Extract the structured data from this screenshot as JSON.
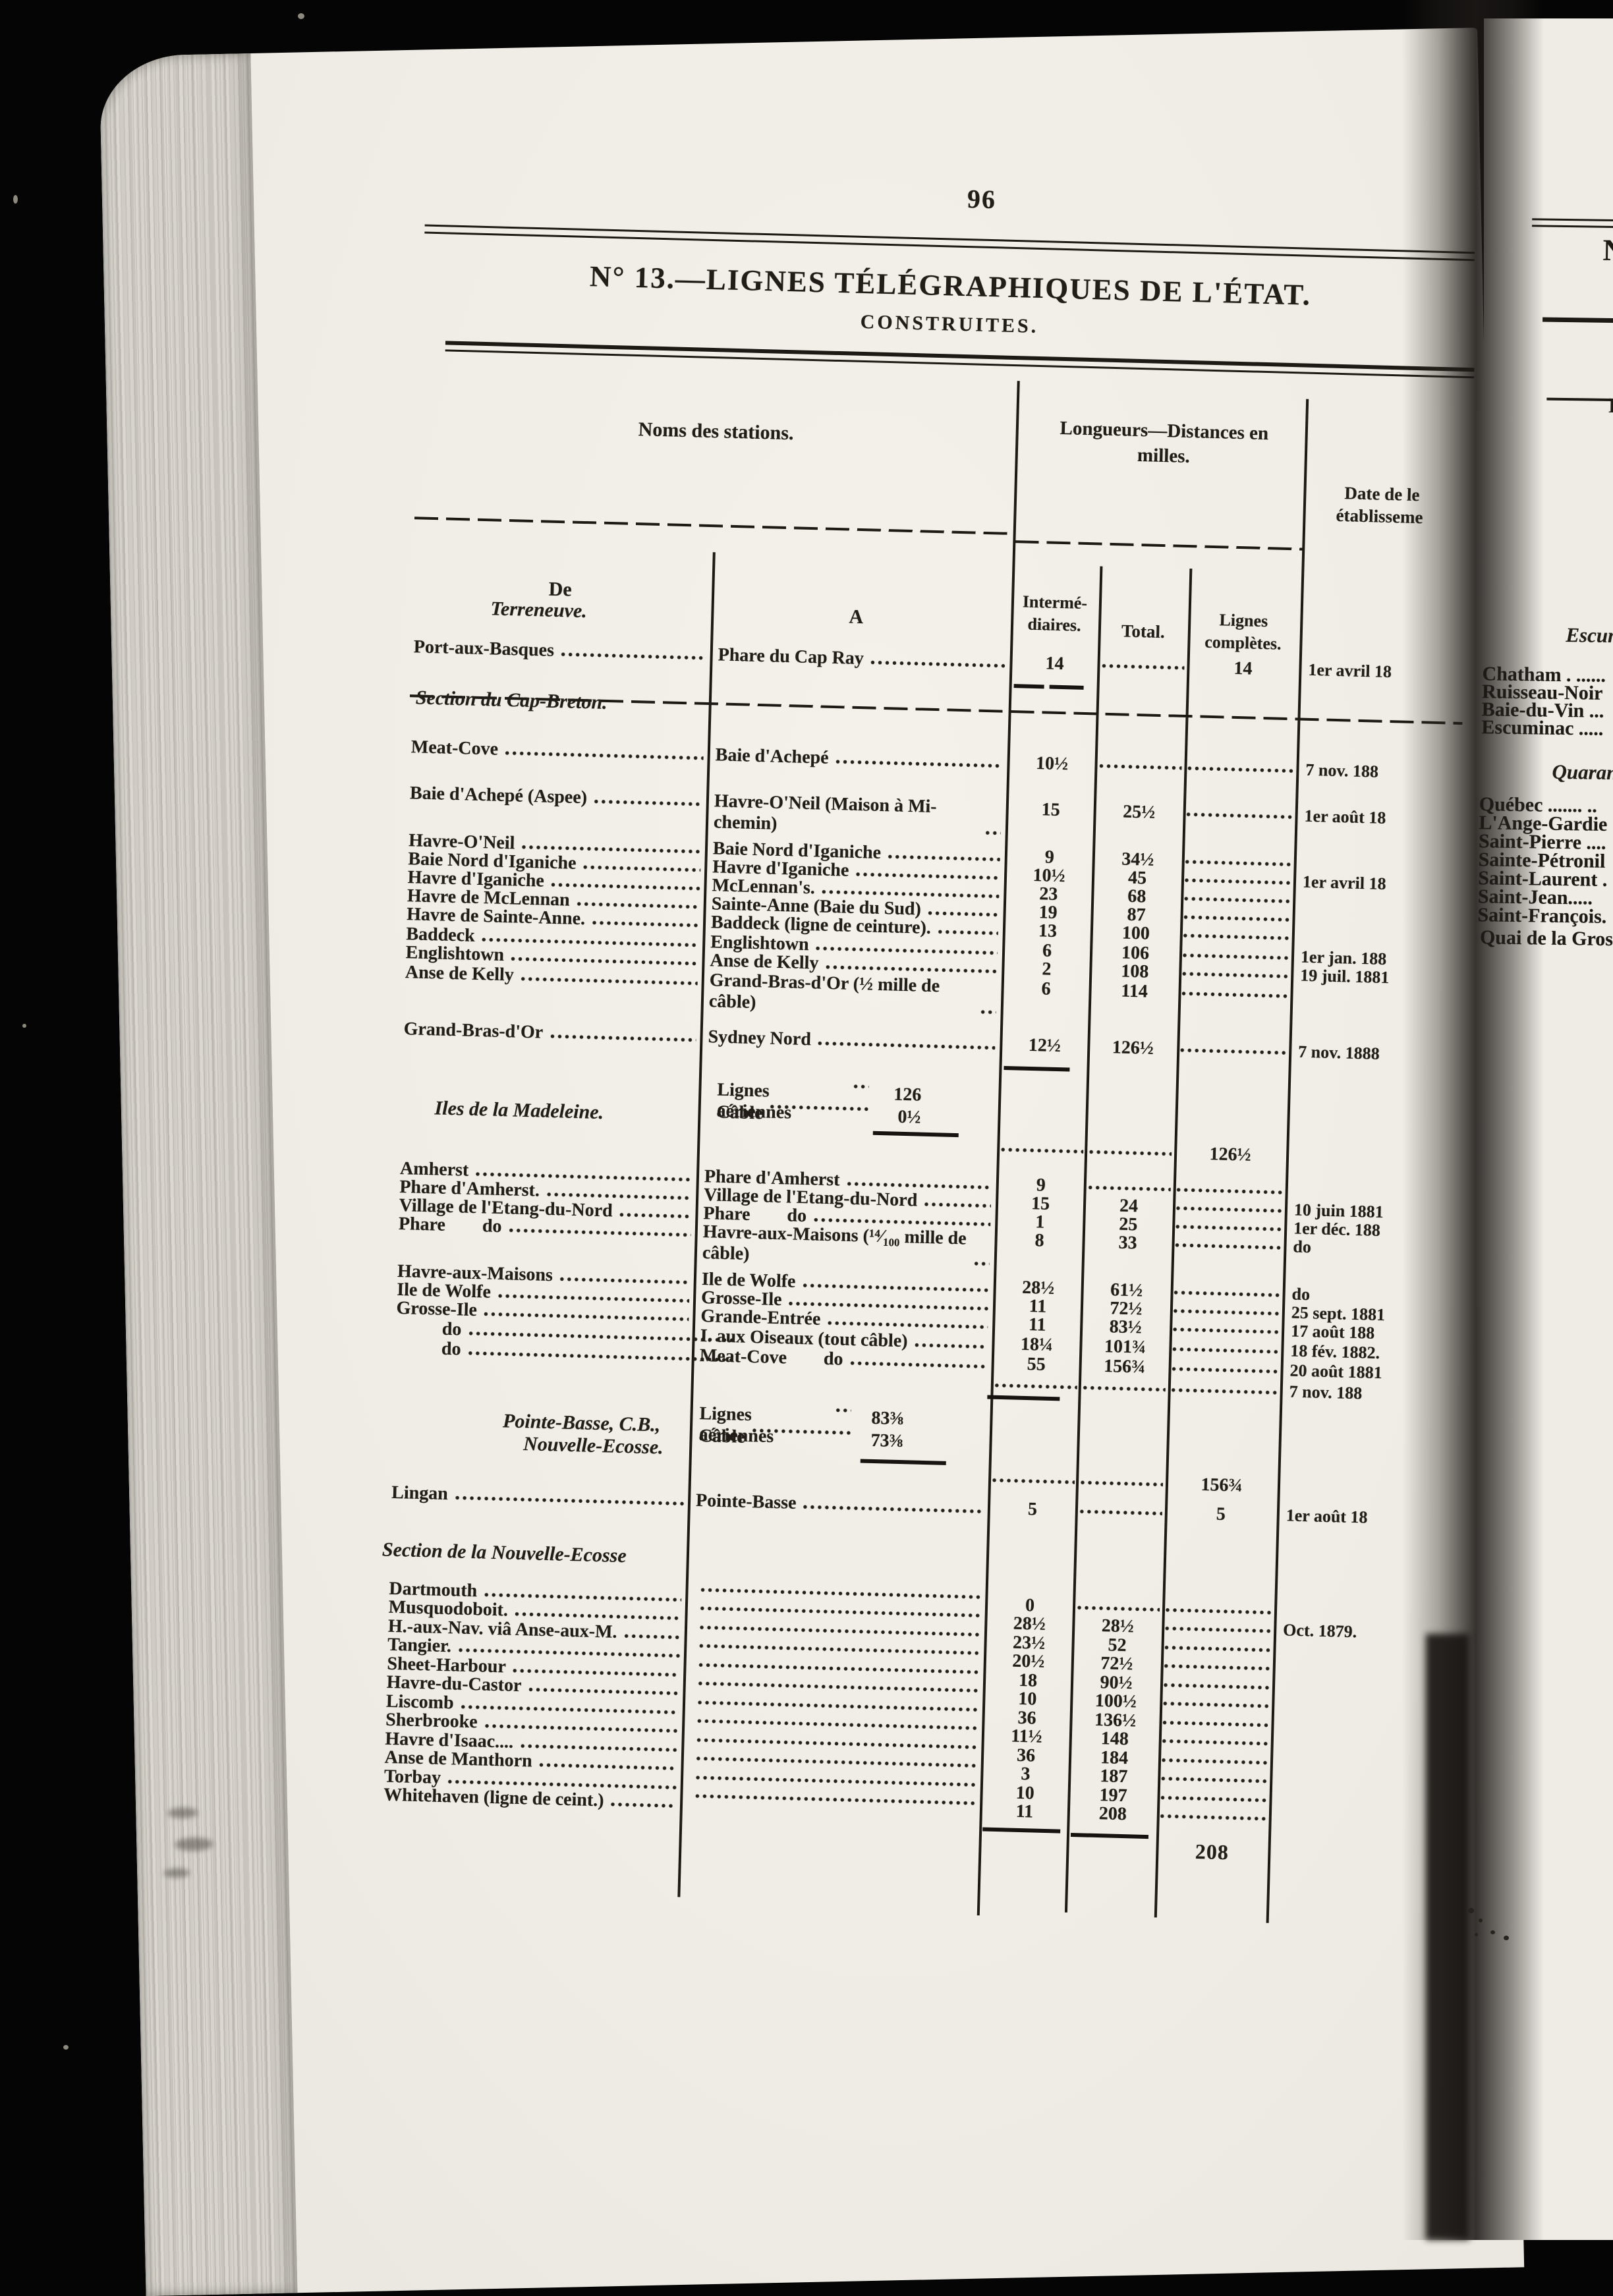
{
  "page": {
    "number": "96",
    "title": "N° 13.—LIGNES TÉLÉGRAPHIQUES DE L'ÉTAT.",
    "subtitle": "CONSTRUITES."
  },
  "table": {
    "headers": {
      "stations": "Noms des stations.",
      "longueurs_line1": "Longueurs—Distances en",
      "longueurs_line2": "milles.",
      "date_line1": "Date de le",
      "date_line2": "établisseme",
      "de": "De",
      "a": "A",
      "interm_line1": "Intermé-",
      "interm_line2": "diaires.",
      "total": "Total.",
      "lignes_line1": "Lignes",
      "lignes_line2": "complètes."
    },
    "sections": [
      {
        "heading": "Terreneuve.",
        "rows": [
          {
            "de": "Port-aux-Basques",
            "a": "Phare du Cap Ray",
            "interm": "14",
            "total": "",
            "lignes": "14",
            "date": "1er avril 18"
          }
        ]
      },
      {
        "heading": "Section du Cap-Breton.",
        "rows": [
          {
            "de": "Meat-Cove",
            "a": "Baie d'Achepé",
            "interm": "10½",
            "total": "",
            "lignes": "",
            "date": "7 nov. 188"
          },
          {
            "de": "Baie d'Achepé (Aspee)",
            "a": "Havre-O'Neil (Maison à Mi-chemin)",
            "interm": "15",
            "total": "25½",
            "lignes": "",
            "date": "1er août 18"
          },
          {
            "de": "Havre-O'Neil",
            "a": "Baie Nord d'Iganiche",
            "interm": "9",
            "total": "34½",
            "lignes": "",
            "date": ""
          },
          {
            "de": "Baie Nord d'Iganiche",
            "a": "Havre d'Iganiche",
            "interm": "10½",
            "total": "45",
            "lignes": "",
            "date": "1er avril 18"
          },
          {
            "de": "Havre d'Iganiche",
            "a": "McLennan's.",
            "interm": "23",
            "total": "68",
            "lignes": "",
            "date": ""
          },
          {
            "de": "Havre de McLennan",
            "a": "Sainte-Anne (Baie du Sud)",
            "interm": "19",
            "total": "87",
            "lignes": "",
            "date": ""
          },
          {
            "de": "Havre de Sainte-Anne.",
            "a": "Baddeck (ligne de ceinture).",
            "interm": "13",
            "total": "100",
            "lignes": "",
            "date": ""
          },
          {
            "de": "Baddeck",
            "a": "Englishtown",
            "interm": "6",
            "total": "106",
            "lignes": "",
            "date": "1er jan. 188"
          },
          {
            "de": "Englishtown",
            "a": "Anse de Kelly",
            "interm": "2",
            "total": "108",
            "lignes": "",
            "date": "19 juil. 1881"
          },
          {
            "de": "Anse de Kelly",
            "a": "Grand-Bras-d'Or (½ mille de câble)",
            "interm": "6",
            "total": "114",
            "lignes": "",
            "date": ""
          },
          {
            "de": "Grand-Bras-d'Or",
            "a": "Sydney Nord",
            "interm": "12½",
            "total": "126½",
            "lignes": "",
            "date": "7 nov. 1888"
          }
        ],
        "note": {
          "lines": [
            {
              "label": "Lignes aériennes",
              "value": "126"
            },
            {
              "label": "Câble",
              "value": "0½"
            }
          ],
          "sum_lignes": "126½",
          "sum_date": ""
        }
      },
      {
        "heading": "Iles de la Madeleine.",
        "rows": [
          {
            "de": "Amherst",
            "a": "Phare d'Amherst",
            "interm": "9",
            "total": "",
            "lignes": "",
            "date": ""
          },
          {
            "de": "Phare d'Amherst.",
            "a": "Village de l'Etang-du-Nord",
            "interm": "15",
            "total": "24",
            "lignes": "",
            "date": "10 juin 1881"
          },
          {
            "de": "Village de l'Etang-du-Nord",
            "a": "Phare  do",
            "interm": "1",
            "total": "25",
            "lignes": "",
            "date": "1er déc. 188"
          },
          {
            "de": "Phare  do",
            "a": "Havre-aux-Maisons (¹⁴⁄₁₀₀ mille de câble)",
            "interm": "8",
            "total": "33",
            "lignes": "",
            "date": "do"
          },
          {
            "de": "Havre-aux-Maisons",
            "a": "Ile de Wolfe",
            "interm": "28½",
            "total": "61½",
            "lignes": "",
            "date": "do"
          },
          {
            "de": "Ile de Wolfe",
            "a": "Grosse-Ile",
            "interm": "11",
            "total": "72½",
            "lignes": "",
            "date": "25 sept. 1881"
          },
          {
            "de": "Grosse-Ile",
            "a": "Grande-Entrée",
            "interm": "11",
            "total": "83½",
            "lignes": "",
            "date": "17 août 188"
          },
          {
            "de": "do",
            "a": "I. aux Oiseaux (tout câble)",
            "interm": "18¼",
            "total": "101¾",
            "lignes": "",
            "date": "18 fév. 1882."
          },
          {
            "de": "do",
            "a": "Meat-Cove  do",
            "interm": "55",
            "total": "156¾",
            "lignes": "",
            "date": "20 août 1881"
          }
        ],
        "sum_row": {
          "lignes": "",
          "date": "7 nov. 188"
        },
        "note": {
          "lines": [
            {
              "label": "Lignes aériennes",
              "value": "83⅜"
            },
            {
              "label": "Câble",
              "value": "73⅜"
            }
          ],
          "sum_lignes": "156¾",
          "sum_date": ""
        },
        "footer_heading_line1": "Pointe-Basse, C.B.,",
        "footer_heading_line2": "Nouvelle-Ecosse."
      },
      {
        "heading": "",
        "rows": [
          {
            "de": "Lingan",
            "a": "Pointe-Basse",
            "interm": "5",
            "total": "",
            "lignes": "5",
            "date": "1er août 18"
          }
        ]
      },
      {
        "heading": "Section de la Nouvelle-Ecosse",
        "rows": [
          {
            "de": "Dartmouth",
            "a": "",
            "interm": "0",
            "total": "",
            "lignes": "",
            "date": ""
          },
          {
            "de": "Musquodoboit.",
            "a": "",
            "interm": "28½",
            "total": "28½",
            "lignes": "",
            "date": "Oct. 1879."
          },
          {
            "de": "H.-aux-Nav. viâ Anse-aux-M.",
            "a": "",
            "interm": "23½",
            "total": "52",
            "lignes": "",
            "date": ""
          },
          {
            "de": "Tangier.",
            "a": "",
            "interm": "20½",
            "total": "72½",
            "lignes": "",
            "date": ""
          },
          {
            "de": "Sheet-Harbour",
            "a": "",
            "interm": "18",
            "total": "90½",
            "lignes": "",
            "date": ""
          },
          {
            "de": "Havre-du-Castor",
            "a": "",
            "interm": "10",
            "total": "100½",
            "lignes": "",
            "date": ""
          },
          {
            "de": "Liscomb",
            "a": "",
            "interm": "36",
            "total": "136½",
            "lignes": "",
            "date": ""
          },
          {
            "de": "Sherbrooke",
            "a": "",
            "interm": "11½",
            "total": "148",
            "lignes": "",
            "date": ""
          },
          {
            "de": "Havre d'Isaac....",
            "a": "",
            "interm": "36",
            "total": "184",
            "lignes": "",
            "date": ""
          },
          {
            "de": "Anse de Manthorn",
            "a": "",
            "interm": "3",
            "total": "187",
            "lignes": "",
            "date": ""
          },
          {
            "de": "Torbay",
            "a": "",
            "interm": "10",
            "total": "197",
            "lignes": "",
            "date": ""
          },
          {
            "de": "Whitehaven (ligne de ceint.)",
            "a": "",
            "interm": "11",
            "total": "208",
            "lignes": "",
            "date": ""
          }
        ],
        "grand_total": "208"
      }
    ]
  },
  "right_page": {
    "title_fragment": "N",
    "header_fragment": "D",
    "heading1": "Escum",
    "items1": [
      "Chatham . ......",
      "Ruisseau-Noir",
      "Baie-du-Vin ...",
      "Escuminac ....."
    ],
    "heading2": "Quaran",
    "items2": [
      "Québec ....... ..",
      "L'Ange-Gardie",
      "Saint-Pierre ....",
      "Sainte-Pétronil",
      "Saint-Laurent .",
      "Saint-Jean.....",
      "Saint-François."
    ],
    "footer_item": "Quai de la Gros"
  }
}
